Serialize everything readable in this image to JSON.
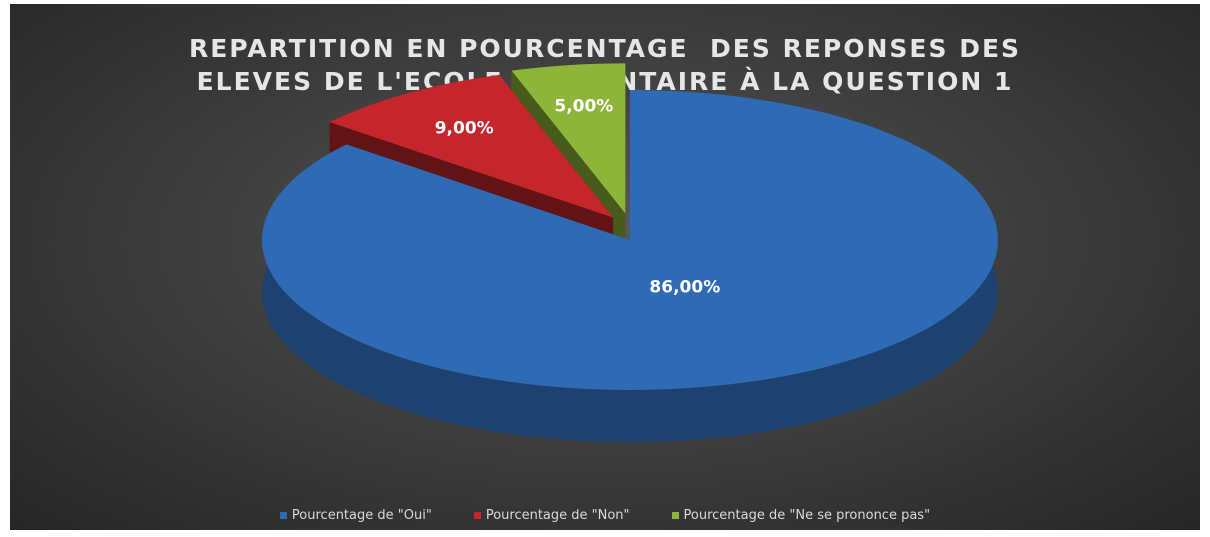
{
  "chart_data": {
    "type": "pie",
    "title": "REPARTITION EN POURCENTAGE  DES REPONSES DES\nELEVES DE L'ECOLE ELEMENTAIRE À LA QUESTION 1",
    "categories": [
      "Pourcentage de \"Oui\"",
      "Pourcentage de \"Non\"",
      "Pourcentage de \"Ne se prononce pas\""
    ],
    "values": [
      86,
      9,
      5
    ],
    "value_labels": [
      "86,00%",
      "9,00%",
      "5,00%"
    ],
    "colors": [
      "#2f6ab5",
      "#c4262b",
      "#8db53a"
    ],
    "legend": "bottom"
  }
}
